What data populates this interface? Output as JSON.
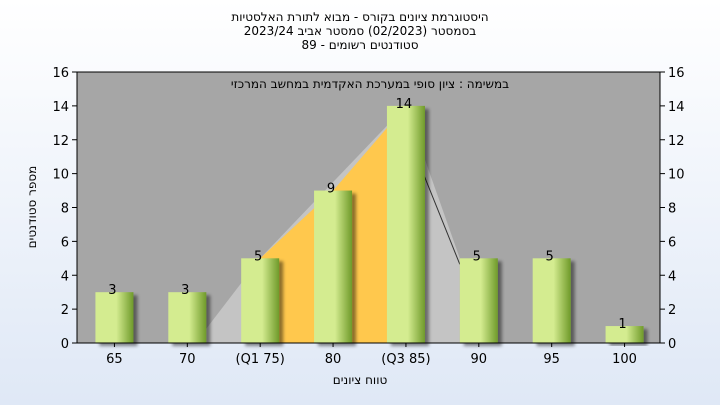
{
  "chart_data": {
    "type": "bar",
    "title_lines": [
      "היסטוגרמת ציונים בקורס - מבוא לתורת האלסטיות",
      "בסמסטר  (02/2023)  סמסטר אביב 2023/24",
      "סטודנטים רשומים - 89"
    ],
    "categories": [
      "65",
      "70",
      "(Q1 75)",
      "80",
      "(Q3 85)",
      "90",
      "95",
      "100"
    ],
    "values": [
      3,
      3,
      5,
      9,
      14,
      5,
      5,
      1
    ],
    "data_labels": [
      "3",
      "3",
      "5",
      "9",
      "14",
      "5",
      "5",
      "1"
    ],
    "xlabel": "טווח ציונים",
    "ylabel": "מספר סטודנטים",
    "ylim": [
      0,
      16
    ],
    "yticks": [
      "0",
      "2",
      "4",
      "6",
      "8",
      "10",
      "12",
      "14",
      "16"
    ],
    "annotation": "במשימה : ציון סופי במערכת האקדמית במחשב המרכזי",
    "grid": false,
    "colors": {
      "plot_bg": "#a6a6a6",
      "bar_light": "#d4ec90",
      "bar_dark": "#6f9a2a",
      "iqr_fill": "#ffc84d",
      "outer_fill": "#c4c4c4",
      "median_line": "#333333"
    }
  }
}
